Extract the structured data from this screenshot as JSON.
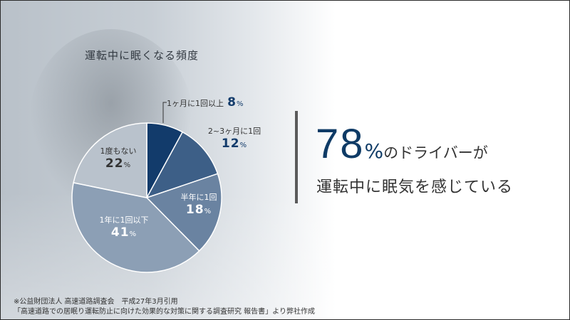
{
  "chart_data": {
    "type": "pie",
    "title": "運転中に眠くなる頻度",
    "slices": [
      {
        "label": "1ヶ月に1回以上",
        "value": 8,
        "value_label": "8",
        "color": "#123b6b"
      },
      {
        "label": "2~3ヶ月に1回",
        "value": 12,
        "value_label": "12",
        "color": "#3d5f87"
      },
      {
        "label": "半年に1回",
        "value": 18,
        "value_label": "18",
        "color": "#6a83a1"
      },
      {
        "label": "1年に1回以下",
        "value": 41,
        "value_label": "41",
        "color": "#8c9fb5"
      },
      {
        "label": "1度もない",
        "value": 22,
        "value_label": "22",
        "color": "#b9c2cc"
      }
    ],
    "unit": "%"
  },
  "headline": {
    "number": "78",
    "unit": "%",
    "rest": "のドライバーが",
    "line2": "運転中に眠気を感じている"
  },
  "source": {
    "line1": "※公益財団法人 高速道路調査会　平成27年3月引用",
    "line2": "「高速道路での居眠り運転防止に向けた効果的な対策に関する調査研究 報告書」より弊社作成"
  }
}
